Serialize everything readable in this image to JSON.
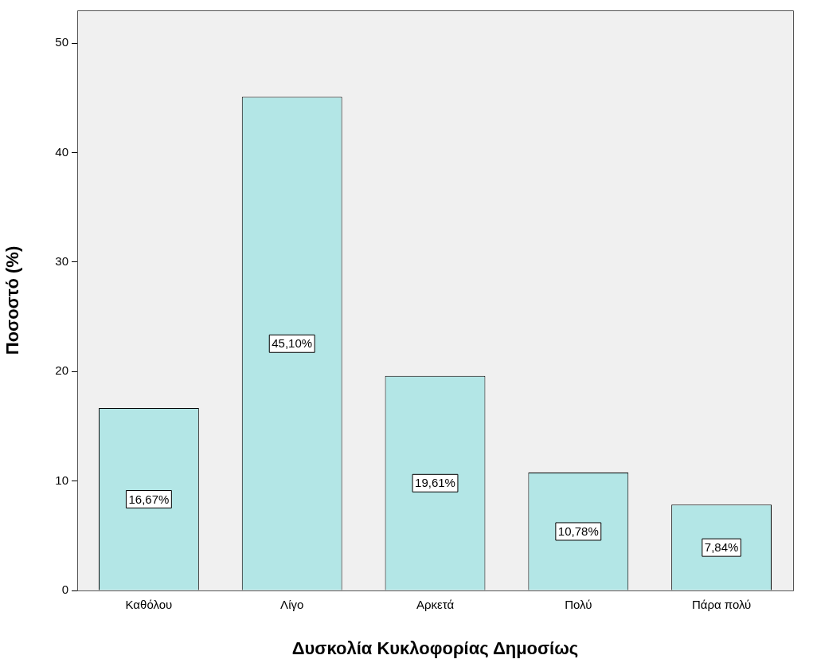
{
  "chart_data": {
    "type": "bar",
    "xlabel": "Δυσκολία Κυκλοφορίας Δημοσίως",
    "ylabel": "Ποσοστό (%)",
    "categories": [
      "Καθόλου",
      "Λίγο",
      "Αρκετά",
      "Πολύ",
      "Πάρα πολύ"
    ],
    "values": [
      16.67,
      45.1,
      19.61,
      10.78,
      7.84
    ],
    "value_labels": [
      "16,67%",
      "45,10%",
      "19,61%",
      "10,78%",
      "7,84%"
    ],
    "color": "#b3e6e6",
    "ylim": [
      0,
      53
    ],
    "yticks": [
      0,
      10,
      20,
      30,
      40,
      50
    ],
    "grid": false,
    "legend": false
  }
}
